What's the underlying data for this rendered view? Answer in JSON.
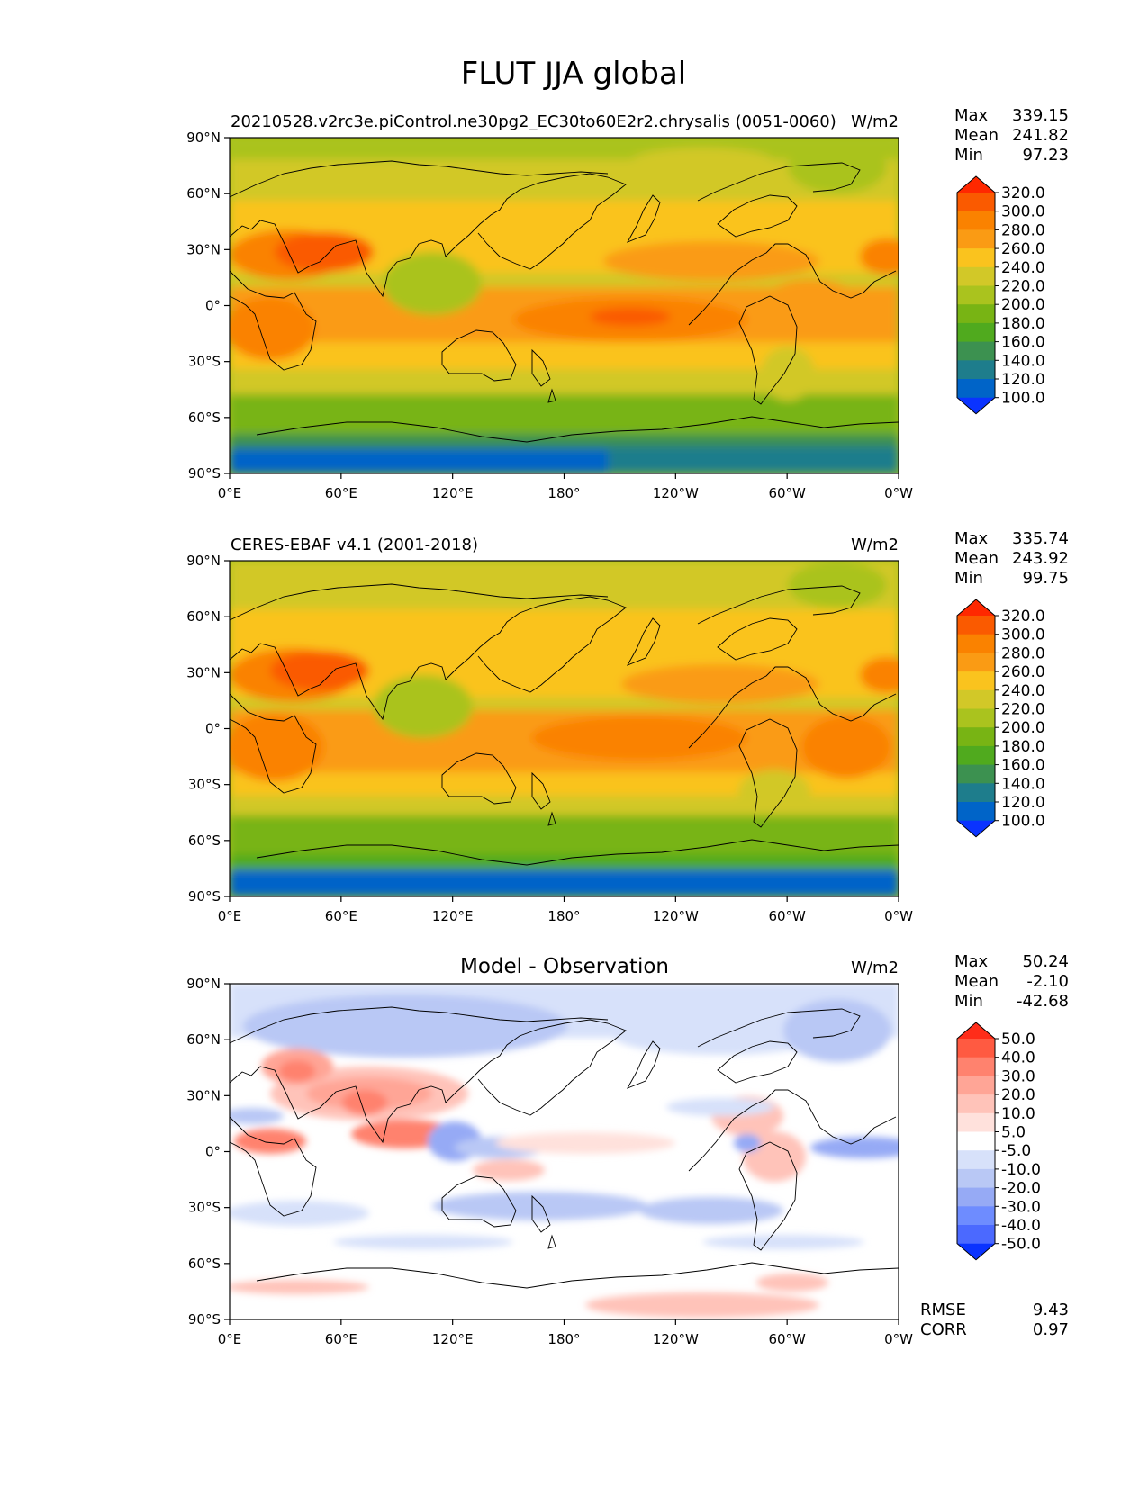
{
  "figure": {
    "title": "FLUT JJA global"
  },
  "colors": {
    "abs_levels": [
      "#0a33ff",
      "#0064c8",
      "#1e7d8c",
      "#3c9150",
      "#50aa1e",
      "#78b414",
      "#aac31e",
      "#d2c828",
      "#fac31e",
      "#fa9b14",
      "#fa8200",
      "#fa5a00",
      "#ff2800"
    ],
    "diff_levels": [
      "#0a33ff",
      "#4b69ff",
      "#6e8cff",
      "#96aaf5",
      "#b9c8f5",
      "#d7e1fa",
      "#ffffff",
      "#ffe1dc",
      "#ffc3b9",
      "#ffa596",
      "#ff826e",
      "#ff5a41",
      "#ff2d19"
    ]
  },
  "axes": {
    "lat_ticks": [
      "90°N",
      "60°N",
      "30°N",
      "0°",
      "30°S",
      "60°S",
      "90°S"
    ],
    "lon_ticks": [
      "0°E",
      "60°E",
      "120°E",
      "180°",
      "120°W",
      "60°W",
      "0°W"
    ]
  },
  "chart_data": [
    {
      "type": "heatmap",
      "title": "",
      "left_label": "20210528.v2rc3e.piControl.ne30pg2_EC30to60E2r2.chrysalis (0051-0060)",
      "units": "W/m2",
      "stats": {
        "max": "339.15",
        "mean": "241.82",
        "min": "97.23"
      },
      "colorbar_levels": [
        "320.0",
        "300.0",
        "280.0",
        "260.0",
        "240.0",
        "220.0",
        "200.0",
        "180.0",
        "160.0",
        "140.0",
        "120.0",
        "100.0"
      ],
      "colorbar_extend": "both",
      "x_range": [
        0,
        360
      ],
      "y_range": [
        -90,
        90
      ]
    },
    {
      "type": "heatmap",
      "title": "",
      "left_label": "CERES-EBAF v4.1 (2001-2018)",
      "units": "W/m2",
      "stats": {
        "max": "335.74",
        "mean": "243.92",
        "min": "99.75"
      },
      "colorbar_levels": [
        "320.0",
        "300.0",
        "280.0",
        "260.0",
        "240.0",
        "220.0",
        "200.0",
        "180.0",
        "160.0",
        "140.0",
        "120.0",
        "100.0"
      ],
      "colorbar_extend": "both",
      "x_range": [
        0,
        360
      ],
      "y_range": [
        -90,
        90
      ]
    },
    {
      "type": "heatmap",
      "title": "Model - Observation",
      "left_label": "",
      "units": "W/m2",
      "stats": {
        "max": "50.24",
        "mean": "-2.10",
        "min": "-42.68"
      },
      "colorbar_levels": [
        "50.0",
        "40.0",
        "30.0",
        "20.0",
        "10.0",
        "5.0",
        "-5.0",
        "-10.0",
        "-20.0",
        "-30.0",
        "-40.0",
        "-50.0"
      ],
      "colorbar_extend": "both",
      "metrics": {
        "rmse_label": "RMSE",
        "rmse": "9.43",
        "corr_label": "CORR",
        "corr": "0.97"
      },
      "x_range": [
        0,
        360
      ],
      "y_range": [
        -90,
        90
      ]
    }
  ]
}
